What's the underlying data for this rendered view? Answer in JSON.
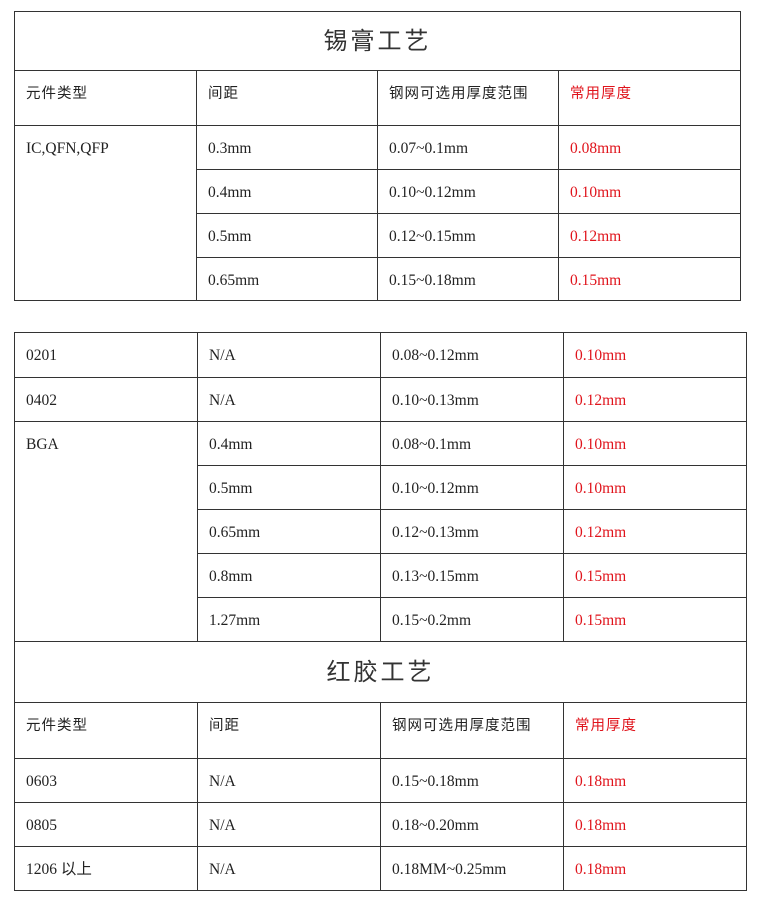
{
  "solder_paste": {
    "title": "锡膏工艺",
    "headers": [
      "元件类型",
      "间距",
      "钢网可选用厚度范围",
      "常用厚度"
    ],
    "groups": [
      {
        "component": "IC,QFN,QFP",
        "rows": [
          [
            "0.3mm",
            "0.07~0.1mm",
            "0.08mm"
          ],
          [
            "0.4mm",
            "0.10~0.12mm",
            "0.10mm"
          ],
          [
            "0.5mm",
            "0.12~0.15mm",
            "0.12mm"
          ],
          [
            "0.65mm",
            "0.15~0.18mm",
            "0.15mm"
          ]
        ]
      }
    ]
  },
  "solder_paste_continued": {
    "groups": [
      {
        "component": "0201",
        "rows": [
          [
            "N/A",
            "0.08~0.12mm",
            "0.10mm"
          ]
        ]
      },
      {
        "component": "0402",
        "rows": [
          [
            "N/A",
            "0.10~0.13mm",
            "0.12mm"
          ]
        ]
      },
      {
        "component": "BGA",
        "rows": [
          [
            "0.4mm",
            "0.08~0.1mm",
            "0.10mm"
          ],
          [
            "0.5mm",
            "0.10~0.12mm",
            "0.10mm"
          ],
          [
            "0.65mm",
            "0.12~0.13mm",
            "0.12mm"
          ],
          [
            "0.8mm",
            "0.13~0.15mm",
            "0.15mm"
          ],
          [
            "1.27mm",
            "0.15~0.2mm",
            "0.15mm"
          ]
        ]
      }
    ]
  },
  "red_glue": {
    "title": "红胶工艺",
    "headers": [
      "元件类型",
      "间距",
      "钢网可选用厚度范围",
      "常用厚度"
    ],
    "groups": [
      {
        "component": "0603",
        "rows": [
          [
            "N/A",
            "0.15~0.18mm",
            "0.18mm"
          ]
        ]
      },
      {
        "component": "0805",
        "rows": [
          [
            "N/A",
            "0.18~0.20mm",
            "0.18mm"
          ]
        ]
      },
      {
        "component": "1206 以上",
        "rows": [
          [
            "N/A",
            "0.18MM~0.25mm",
            "0.18mm"
          ]
        ]
      }
    ]
  },
  "colors": {
    "highlight": "#e0141c",
    "border": "#333333"
  }
}
